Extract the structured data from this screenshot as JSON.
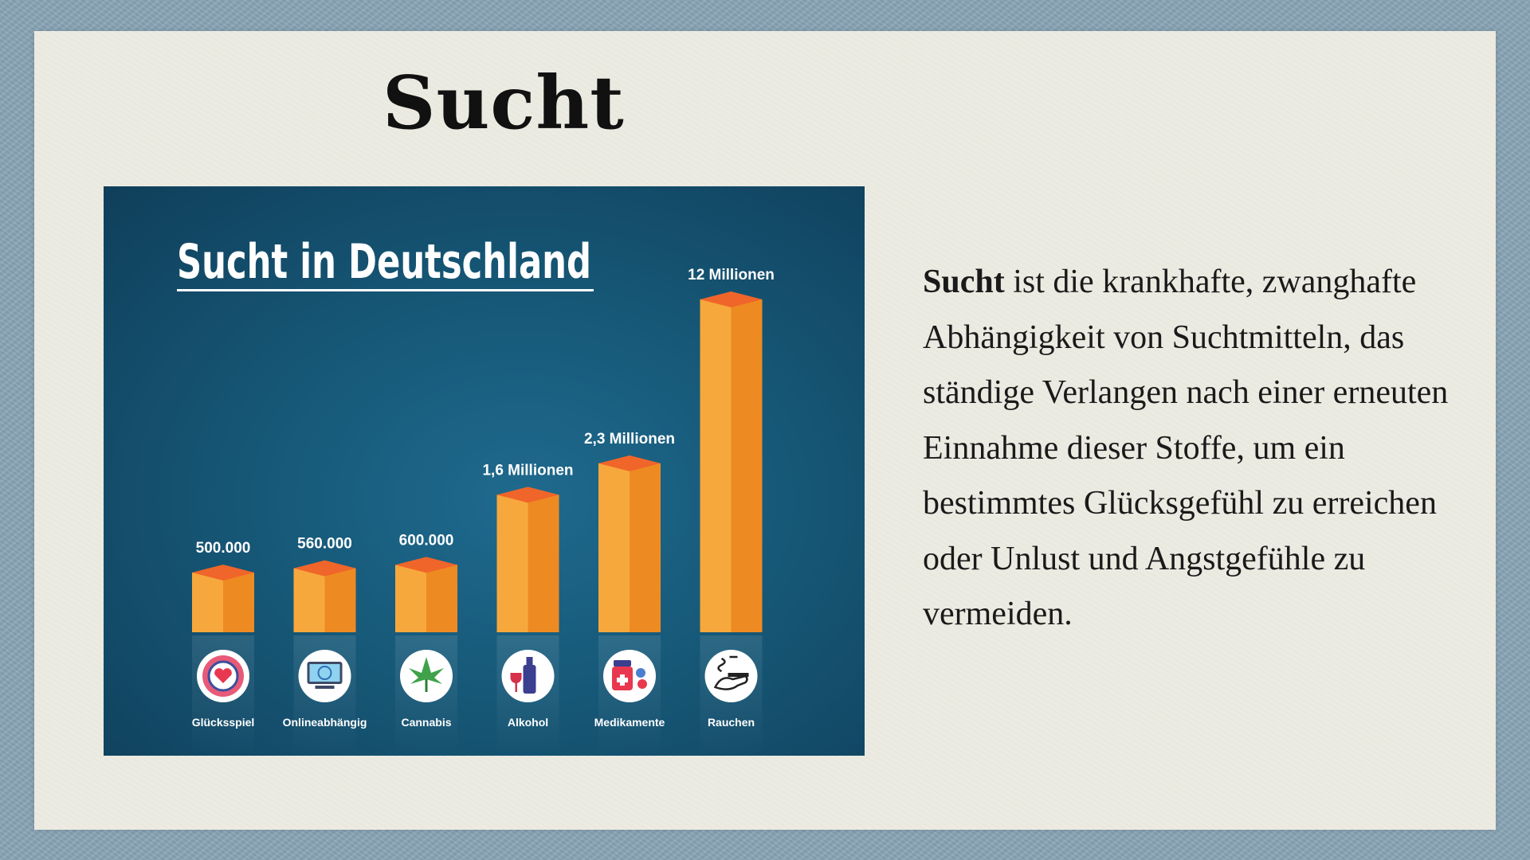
{
  "slide": {
    "title": "Sucht",
    "text_bold": "Sucht",
    "text_rest": " ist die krankhafte, zwanghafte Abhängigkeit von Suchtmitteln, das ständige Verlangen nach einer erneuten Einnahme dieser Stoffe, um ein bestimmtes Glücksgefühl zu erreichen oder Unlust und Angstgefühle zu vermeiden."
  },
  "colors": {
    "bar_front": "#f7a83c",
    "bar_side": "#ee8a22",
    "bar_top": "#f0652a",
    "panel_dark": "#0f3f5a",
    "label": "#ffffff"
  },
  "chart_data": {
    "type": "bar",
    "title": "Sucht in Deutschland",
    "categories": [
      "Glücksspiel",
      "Onlineabhängig",
      "Cannabis",
      "Alkohol",
      "Medikamente",
      "Rauchen"
    ],
    "icons": [
      "casino-chip-icon",
      "computer-globe-icon",
      "cannabis-leaf-icon",
      "alcohol-bottle-icon",
      "medicine-icon",
      "smoking-hand-icon"
    ],
    "values": [
      500000,
      560000,
      600000,
      1600000,
      2300000,
      12000000
    ],
    "value_labels": [
      "500.000",
      "560.000",
      "600.000",
      "1,6 Millionen",
      "2,3 Millionen",
      "12 Millionen"
    ],
    "scale": "non-linear (pictorial)",
    "grid": false,
    "legend": "none"
  }
}
